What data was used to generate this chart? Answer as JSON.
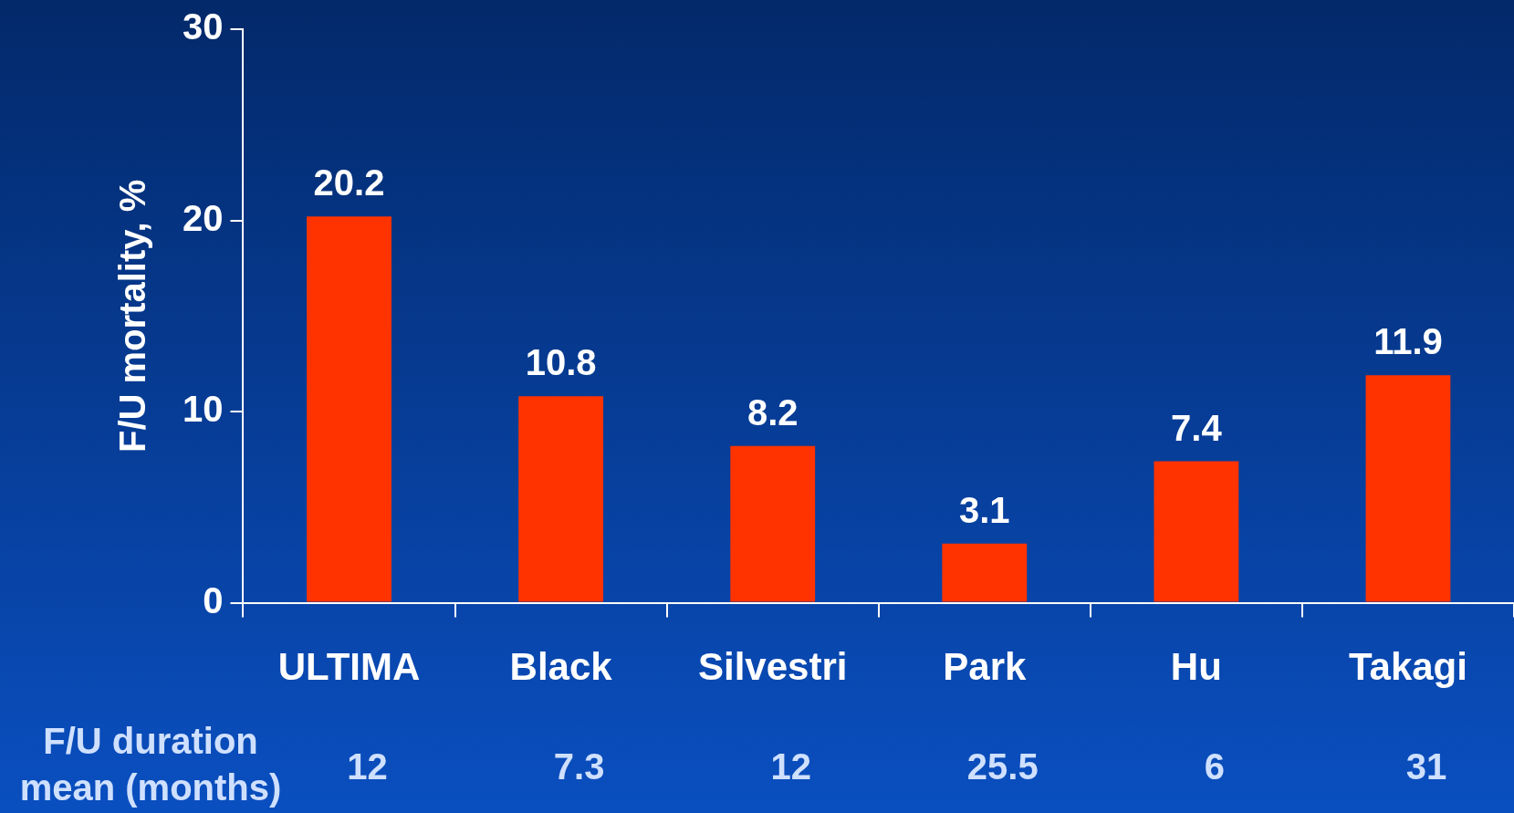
{
  "chart_data": {
    "type": "bar",
    "ylabel": "F/U mortality, %",
    "categories": [
      "ULTIMA",
      "Black",
      "Silvestri",
      "Park",
      "Hu",
      "Takagi"
    ],
    "values": [
      20.2,
      10.8,
      8.2,
      3.1,
      7.4,
      11.9
    ],
    "color": "#ff3300",
    "ylim": [
      0,
      30
    ],
    "yticks": [
      0,
      10,
      20,
      30
    ],
    "data_labels": true,
    "grid": false,
    "legend": false,
    "annotations": [
      "F/U duration mean (months)",
      "12",
      "7.3",
      "12",
      "25.5",
      "6",
      "31"
    ]
  }
}
